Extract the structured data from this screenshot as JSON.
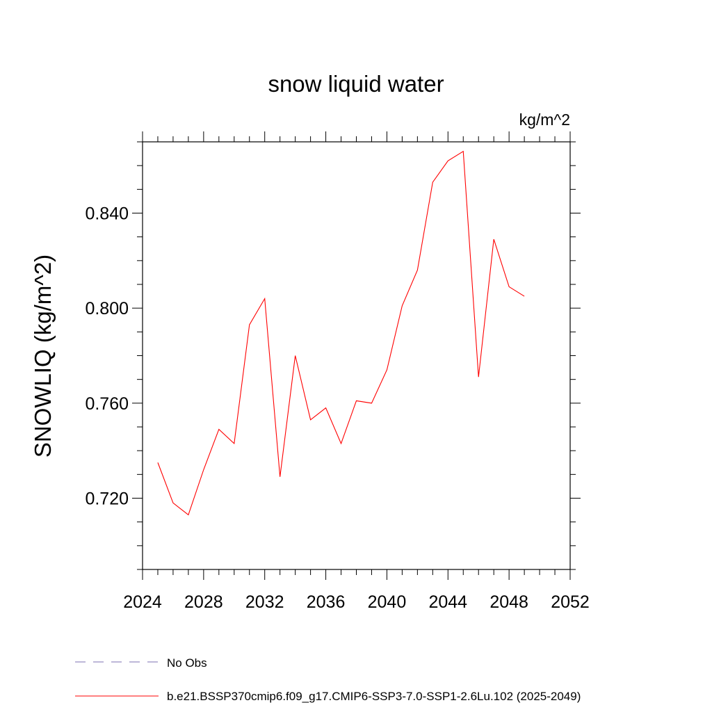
{
  "chart_data": {
    "type": "line",
    "title": "snow liquid water",
    "units_label": "kg/m^2",
    "xlabel": "",
    "ylabel": "SNOWLIQ  (kg/m^2)",
    "xlim": [
      2024,
      2052
    ],
    "ylim": [
      0.69,
      0.87
    ],
    "xticks": [
      2024,
      2028,
      2032,
      2036,
      2040,
      2044,
      2048,
      2052
    ],
    "xtick_labels": [
      "2024",
      "2028",
      "2032",
      "2036",
      "2040",
      "2044",
      "2048",
      "2052"
    ],
    "yticks": [
      0.72,
      0.76,
      0.8,
      0.84
    ],
    "ytick_labels": [
      "0.720",
      "0.760",
      "0.800",
      "0.840"
    ],
    "x_minor_step": 1,
    "y_minor_step": 0.01,
    "series": [
      {
        "name": "b.e21.BSSP370cmip6.f09_g17.CMIP6-SSP3-7.0-SSP1-2.6Lu.102 (2025-2049)",
        "color": "#ff0000",
        "x": [
          2025,
          2026,
          2027,
          2028,
          2029,
          2030,
          2031,
          2032,
          2033,
          2034,
          2035,
          2036,
          2037,
          2038,
          2039,
          2040,
          2041,
          2042,
          2043,
          2044,
          2045,
          2046,
          2047,
          2048,
          2049
        ],
        "values": [
          0.735,
          0.718,
          0.713,
          0.732,
          0.749,
          0.743,
          0.793,
          0.804,
          0.729,
          0.78,
          0.753,
          0.758,
          0.743,
          0.761,
          0.76,
          0.774,
          0.801,
          0.816,
          0.853,
          0.862,
          0.866,
          0.771,
          0.829,
          0.809,
          0.805
        ]
      }
    ],
    "legend": [
      {
        "label": "No Obs",
        "color": "#7b6fb0",
        "style": "dashed"
      },
      {
        "label": "b.e21.BSSP370cmip6.f09_g17.CMIP6-SSP3-7.0-SSP1-2.6Lu.102 (2025-2049)",
        "color": "#ff0000",
        "style": "solid"
      }
    ],
    "grid": false,
    "legend_position": "bottom"
  }
}
